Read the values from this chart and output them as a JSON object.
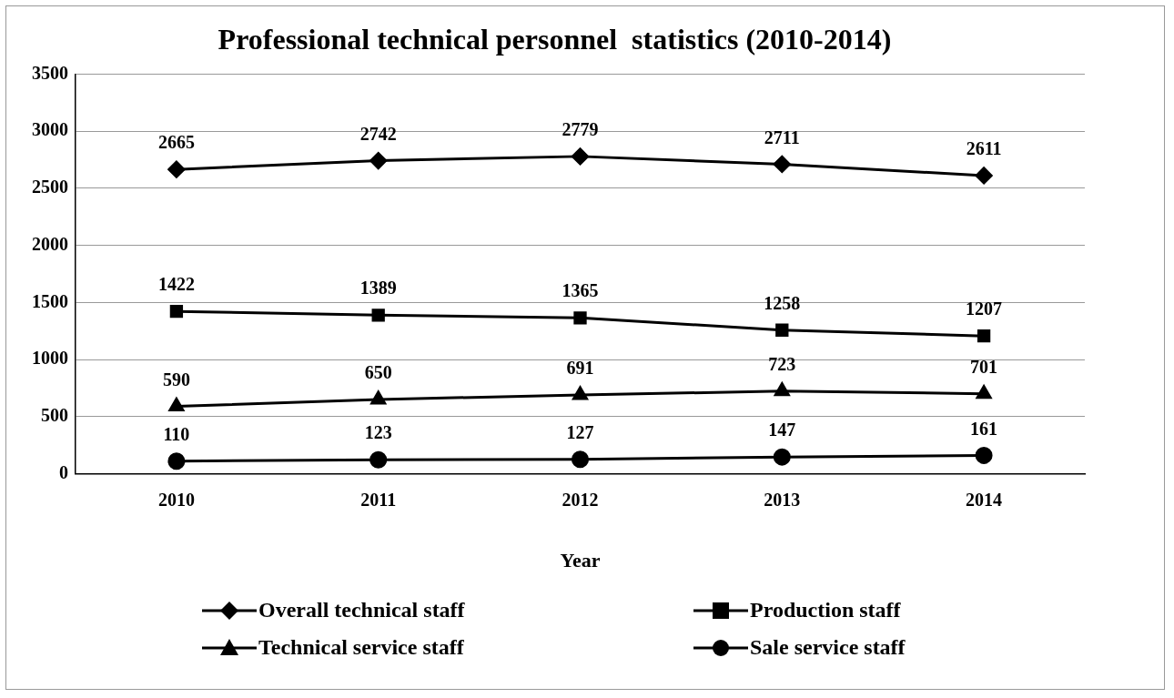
{
  "chart_data": {
    "type": "line",
    "title": "Professional technical personnel  statistics (2010-2014)",
    "xlabel": "Year",
    "categories": [
      "2010",
      "2011",
      "2012",
      "2013",
      "2014"
    ],
    "series": [
      {
        "name": "Overall technical staff",
        "color": "#000000",
        "marker": "diamond",
        "values": [
          2665,
          2742,
          2779,
          2711,
          2611
        ]
      },
      {
        "name": "Production staff",
        "color": "#000000",
        "marker": "square",
        "values": [
          1422,
          1389,
          1365,
          1258,
          1207
        ]
      },
      {
        "name": "Technical service staff",
        "color": "#000000",
        "marker": "triangle",
        "values": [
          590,
          650,
          691,
          723,
          701
        ]
      },
      {
        "name": "Sale service staff",
        "color": "#000000",
        "marker": "circle",
        "values": [
          110,
          123,
          127,
          147,
          161
        ]
      }
    ],
    "ylim": [
      0,
      3500
    ],
    "yticks": [
      0,
      500,
      1000,
      1500,
      2000,
      2500,
      3000,
      3500
    ],
    "grid": "y",
    "legend": "bottom",
    "data_labels": true,
    "line_style": "solid"
  }
}
